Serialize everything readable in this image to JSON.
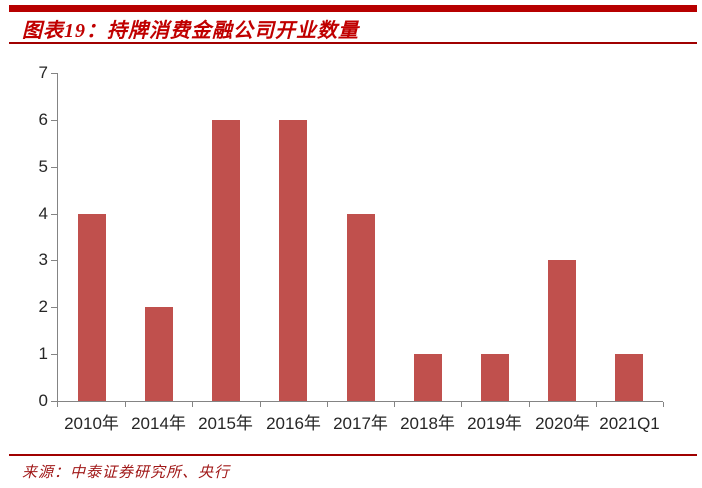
{
  "header": {
    "title": "图表19：持牌消费金融公司开业数量",
    "title_color": "#C00000",
    "accent_bar_color": "#B70000",
    "rule_color": "#A00000"
  },
  "chart_data": {
    "type": "bar",
    "title": "持牌消费金融公司开业数量",
    "categories": [
      "2010年",
      "2014年",
      "2015年",
      "2016年",
      "2017年",
      "2018年",
      "2019年",
      "2020年",
      "2021Q1"
    ],
    "values": [
      4,
      2,
      6,
      6,
      4,
      1,
      1,
      3,
      1
    ],
    "xlabel": "",
    "ylabel": "",
    "ylim": [
      0,
      7
    ],
    "yticks": [
      0,
      1,
      2,
      3,
      4,
      5,
      6,
      7
    ],
    "grid": false,
    "legend": false,
    "bar_color": "#C0504D",
    "axis_color": "#848484",
    "tick_label_color": "#262626"
  },
  "footer": {
    "source": "来源：中泰证券研究所、央行",
    "source_color": "#A01818"
  }
}
